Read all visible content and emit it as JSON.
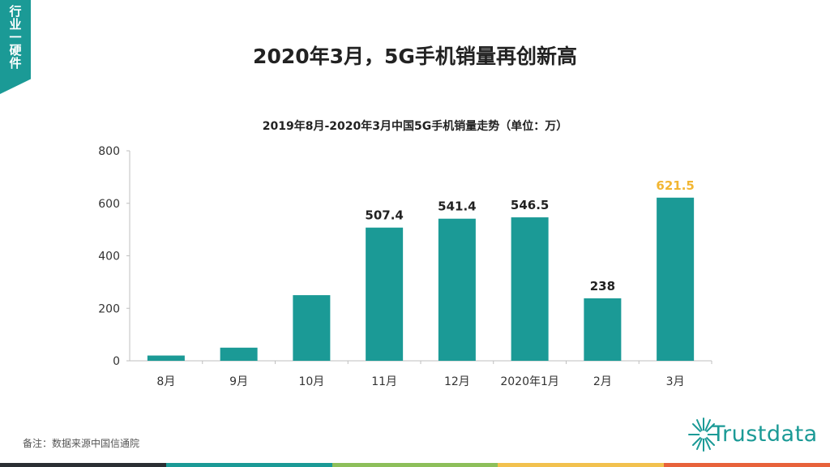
{
  "side_tag": "行业一硬件",
  "page_title": "2020年3月，5G手机销量再创新高",
  "note": "备注：数据来源中国信通院",
  "logo_text": "Trustdata",
  "colors": {
    "bar": "#1b9a96",
    "highlight_label": "#f2b632",
    "label": "#222222",
    "footer": [
      "#2a2e33",
      "#1b9a96",
      "#8dbf5a",
      "#f2c14e",
      "#e8623a"
    ]
  },
  "chart_data": {
    "type": "bar",
    "title": "2019年8月-2020年3月中国5G手机销量走势（单位：万）",
    "categories": [
      "8月",
      "9月",
      "10月",
      "11月",
      "12月",
      "2020年1月",
      "2月",
      "3月"
    ],
    "values": [
      20,
      50,
      250,
      507.4,
      541.4,
      546.5,
      238,
      621.5
    ],
    "data_labels": [
      "",
      "",
      "",
      "507.4",
      "541.4",
      "546.5",
      "238",
      "621.5"
    ],
    "highlight_index": 7,
    "ylim": [
      0,
      800
    ],
    "yticks": [
      0,
      200,
      400,
      600,
      800
    ],
    "grid": false
  }
}
